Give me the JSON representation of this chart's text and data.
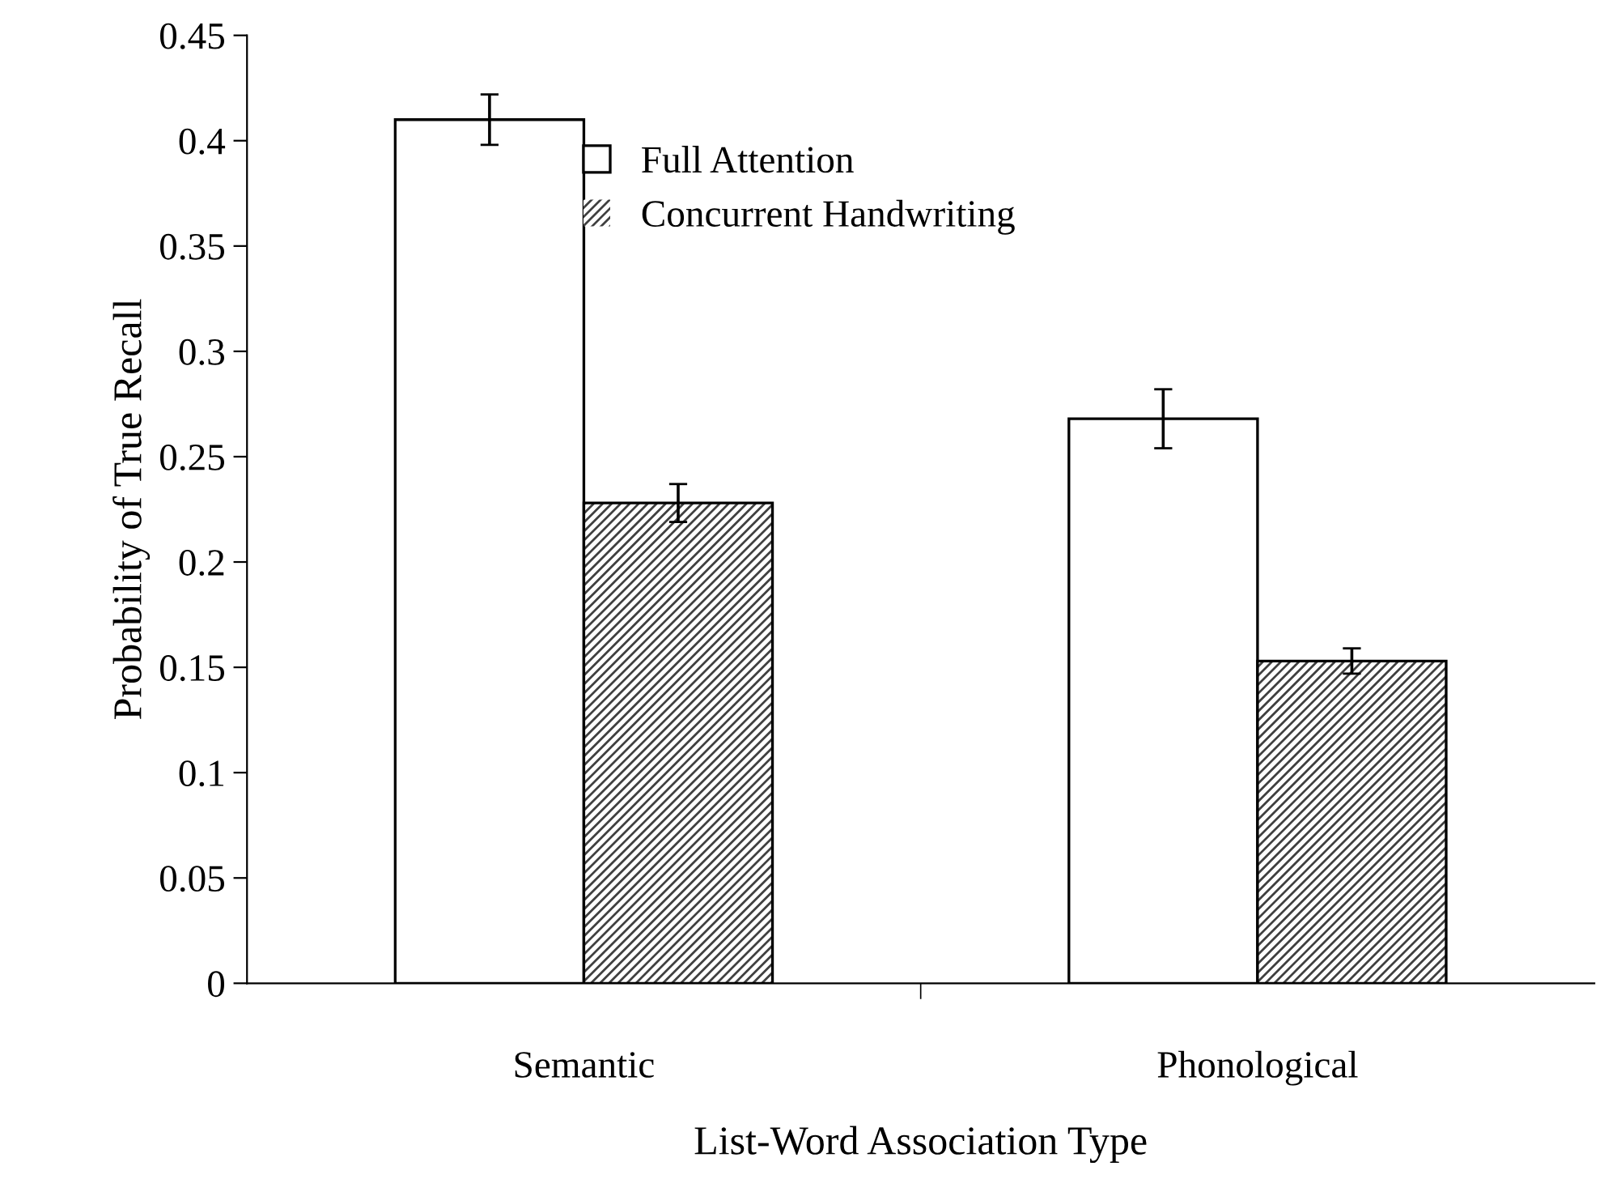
{
  "chart_data": {
    "type": "bar",
    "xlabel": "List-Word Association Type",
    "ylabel": "Probability of True Recall",
    "categories": [
      "Semantic",
      "Phonological"
    ],
    "series": [
      {
        "name": "Full Attention",
        "color": "#ffffff",
        "values": [
          0.41,
          0.268
        ],
        "errors": [
          0.012,
          0.014
        ]
      },
      {
        "name": "Concurrent Handwriting",
        "color": "#404040",
        "values": [
          0.228,
          0.153
        ],
        "errors": [
          0.009,
          0.006
        ]
      }
    ],
    "ylim": [
      0,
      0.45
    ],
    "yticks": [
      0,
      0.05,
      0.1,
      0.15,
      0.2,
      0.25,
      0.3,
      0.35,
      0.4,
      0.45
    ],
    "grid": false,
    "legend": "top"
  }
}
